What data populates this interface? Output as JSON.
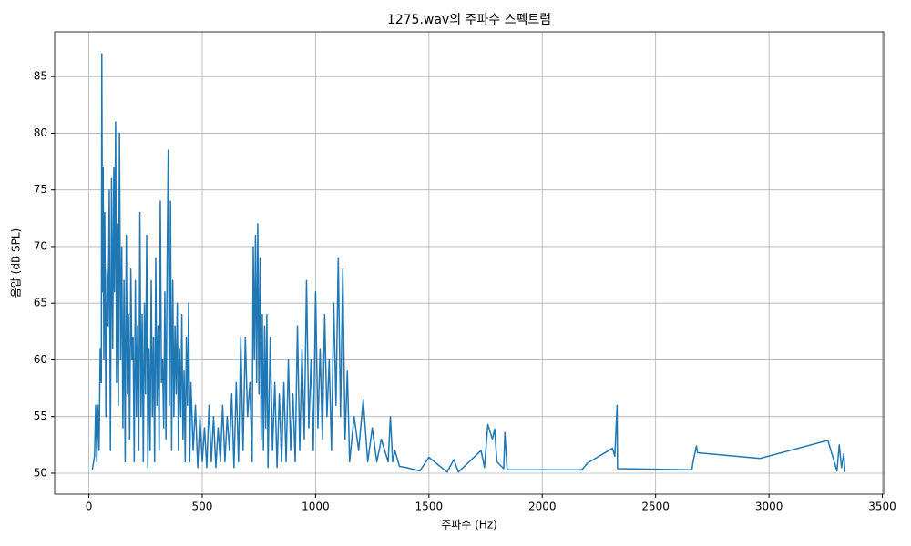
{
  "chart_data": {
    "type": "line",
    "title": "1275.wav의 주파수 스펙트럼",
    "x_label": "주파수 (Hz)",
    "y_label": "음압 (dB SPL)",
    "x": [
      15,
      25,
      30,
      35,
      40,
      45,
      50,
      55,
      57,
      60,
      63,
      66,
      70,
      75,
      80,
      85,
      90,
      95,
      100,
      105,
      110,
      113,
      118,
      122,
      126,
      130,
      135,
      140,
      145,
      150,
      155,
      160,
      165,
      170,
      175,
      180,
      185,
      190,
      195,
      200,
      205,
      210,
      215,
      220,
      225,
      230,
      235,
      240,
      245,
      250,
      255,
      260,
      265,
      270,
      275,
      280,
      285,
      290,
      295,
      300,
      305,
      310,
      315,
      320,
      325,
      330,
      335,
      340,
      345,
      350,
      355,
      360,
      365,
      370,
      375,
      380,
      385,
      390,
      395,
      400,
      405,
      410,
      415,
      420,
      425,
      430,
      435,
      440,
      445,
      450,
      460,
      470,
      480,
      490,
      500,
      510,
      520,
      530,
      540,
      550,
      560,
      570,
      580,
      590,
      600,
      610,
      620,
      630,
      640,
      650,
      660,
      670,
      680,
      690,
      700,
      710,
      720,
      725,
      730,
      735,
      740,
      745,
      750,
      755,
      760,
      765,
      770,
      775,
      780,
      785,
      790,
      800,
      810,
      820,
      830,
      840,
      850,
      860,
      870,
      880,
      890,
      900,
      910,
      920,
      930,
      940,
      950,
      960,
      970,
      980,
      990,
      1000,
      1010,
      1020,
      1030,
      1040,
      1050,
      1060,
      1070,
      1080,
      1090,
      1100,
      1110,
      1120,
      1130,
      1140,
      1150,
      1170,
      1190,
      1210,
      1230,
      1250,
      1270,
      1290,
      1320,
      1330,
      1340,
      1350,
      1370,
      1400,
      1460,
      1500,
      1580,
      1610,
      1630,
      1730,
      1745,
      1760,
      1780,
      1790,
      1800,
      1830,
      1835,
      1845,
      2175,
      2200,
      2310,
      2320,
      2330,
      2332,
      2660,
      2665,
      2680,
      2685,
      2960,
      3260,
      3300,
      3310,
      3320,
      3330,
      3335
    ],
    "values": [
      50.3,
      51.5,
      56,
      51,
      56,
      52,
      61,
      58,
      87,
      66,
      77,
      60,
      73,
      55,
      68,
      63,
      75,
      52,
      76,
      61,
      77,
      66,
      81,
      58,
      72,
      56,
      80,
      60,
      70,
      54,
      67,
      51,
      71,
      57,
      64,
      53,
      68,
      60,
      62,
      51,
      67,
      55,
      63,
      52,
      73,
      55,
      64,
      51,
      65,
      57,
      71,
      50.5,
      61,
      52,
      67,
      55,
      62,
      51,
      69,
      56,
      63,
      52,
      74,
      58,
      60,
      54,
      66,
      53,
      68,
      78.5,
      56,
      74,
      52,
      67,
      55,
      63,
      57,
      65,
      52,
      61,
      55,
      64,
      53,
      59,
      51,
      62,
      56,
      65,
      51,
      58,
      52,
      56,
      50.5,
      55,
      51,
      54,
      50.5,
      56,
      51,
      55,
      50.5,
      54,
      51,
      56,
      51,
      55,
      52,
      57,
      50.5,
      58,
      51,
      62,
      52,
      62,
      55,
      58,
      51,
      70,
      60,
      71,
      58,
      72,
      57,
      69,
      53,
      64,
      52,
      63,
      54,
      64,
      50.5,
      62,
      52,
      58,
      50.5,
      57,
      51,
      58,
      51,
      60,
      52,
      57,
      51,
      63,
      52,
      61,
      53,
      67,
      54,
      60,
      52,
      66,
      54,
      61,
      53,
      64,
      55,
      60,
      52,
      65,
      56,
      69,
      55,
      68,
      53,
      59,
      51,
      55,
      52,
      56.5,
      51,
      54,
      51,
      53,
      51,
      55,
      51,
      52,
      50.6,
      50.5,
      50.2,
      51.4,
      50.1,
      51.2,
      50.1,
      52,
      50.5,
      54.3,
      53,
      53.9,
      51,
      50.4,
      53.6,
      50.3,
      50.3,
      50.9,
      52.2,
      51.5,
      56,
      50.4,
      50.3,
      51,
      52.4,
      51.8,
      51.3,
      52.9,
      50.2,
      52.5,
      50.5,
      51.7,
      50.1
    ],
    "color": "#1f77b4",
    "xlim": [
      -151,
      3506
    ],
    "ylim": [
      48.15,
      88.95
    ],
    "xticks": [
      0,
      500,
      1000,
      1500,
      2000,
      2500,
      3000,
      3500
    ],
    "yticks": [
      50,
      55,
      60,
      65,
      70,
      75,
      80,
      85
    ],
    "grid": true
  }
}
